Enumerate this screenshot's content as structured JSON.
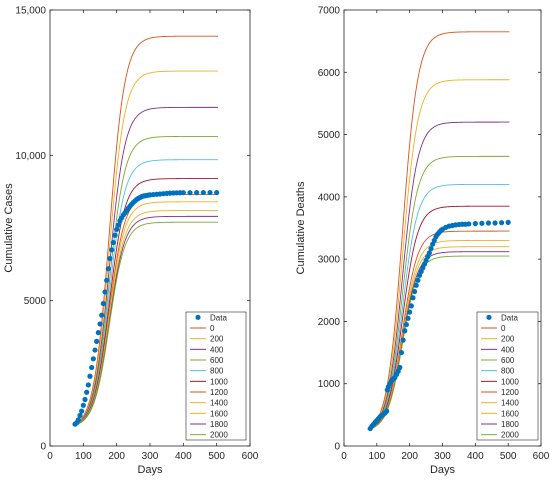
{
  "chart_data": [
    {
      "type": "line",
      "xlabel": "Days",
      "ylabel": "Cumulative Cases",
      "xlim": [
        0,
        600
      ],
      "ylim": [
        0,
        15000
      ],
      "xticks": [
        0,
        100,
        200,
        300,
        400,
        500,
        600
      ],
      "xtick_labels": [
        "0",
        "100",
        "200",
        "300",
        "400",
        "500",
        "600"
      ],
      "yticks": [
        0,
        5000,
        10000,
        15000
      ],
      "ytick_labels": [
        "0",
        "5000",
        "10,000",
        "15,000"
      ],
      "grid": false,
      "legend_position": "bottom-right",
      "legend": [
        "Data",
        "0",
        "200",
        "400",
        "600",
        "800",
        "1000",
        "1200",
        "1400",
        "1600",
        "1800",
        "2000"
      ],
      "data_series": {
        "name": "Data",
        "color": "#0072bd",
        "points": [
          [
            75,
            750
          ],
          [
            80,
            800
          ],
          [
            85,
            900
          ],
          [
            90,
            1050
          ],
          [
            95,
            1200
          ],
          [
            100,
            1400
          ],
          [
            105,
            1600
          ],
          [
            110,
            1850
          ],
          [
            115,
            2100
          ],
          [
            120,
            2400
          ],
          [
            125,
            2700
          ],
          [
            130,
            3000
          ],
          [
            135,
            3300
          ],
          [
            140,
            3600
          ],
          [
            145,
            3900
          ],
          [
            150,
            4200
          ],
          [
            155,
            4500
          ],
          [
            160,
            4900
          ],
          [
            165,
            5300
          ],
          [
            170,
            5700
          ],
          [
            175,
            6100
          ],
          [
            180,
            6450
          ],
          [
            185,
            6750
          ],
          [
            190,
            7000
          ],
          [
            195,
            7250
          ],
          [
            200,
            7450
          ],
          [
            205,
            7600
          ],
          [
            210,
            7750
          ],
          [
            215,
            7850
          ],
          [
            220,
            7950
          ],
          [
            225,
            8020
          ],
          [
            230,
            8100
          ],
          [
            235,
            8180
          ],
          [
            240,
            8250
          ],
          [
            245,
            8320
          ],
          [
            250,
            8380
          ],
          [
            255,
            8430
          ],
          [
            260,
            8480
          ],
          [
            265,
            8520
          ],
          [
            270,
            8550
          ],
          [
            275,
            8580
          ],
          [
            280,
            8600
          ],
          [
            285,
            8610
          ],
          [
            290,
            8620
          ],
          [
            295,
            8630
          ],
          [
            300,
            8640
          ],
          [
            310,
            8650
          ],
          [
            320,
            8660
          ],
          [
            330,
            8670
          ],
          [
            340,
            8680
          ],
          [
            350,
            8690
          ],
          [
            360,
            8700
          ],
          [
            370,
            8705
          ],
          [
            380,
            8710
          ],
          [
            390,
            8712
          ],
          [
            400,
            8715
          ],
          [
            420,
            8715
          ],
          [
            440,
            8718
          ],
          [
            460,
            8720
          ],
          [
            480,
            8720
          ],
          [
            500,
            8720
          ]
        ]
      },
      "model_series": [
        {
          "name": "0",
          "color": "#d95319",
          "final": 14100
        },
        {
          "name": "200",
          "color": "#edb120",
          "final": 12900
        },
        {
          "name": "400",
          "color": "#7e2f8e",
          "final": 11650
        },
        {
          "name": "600",
          "color": "#77ac30",
          "final": 10650
        },
        {
          "name": "800",
          "color": "#4dbeee",
          "final": 9850
        },
        {
          "name": "1000",
          "color": "#a2142f",
          "final": 9200
        },
        {
          "name": "1200",
          "color": "#d95319",
          "final": 8650
        },
        {
          "name": "1400",
          "color": "#edb120",
          "final": 8400
        },
        {
          "name": "1600",
          "color": "#edb120",
          "final": 8100
        },
        {
          "name": "1800",
          "color": "#7e2f8e",
          "final": 7900
        },
        {
          "name": "2000",
          "color": "#77ac30",
          "final": 7700
        }
      ]
    },
    {
      "type": "line",
      "xlabel": "Days",
      "ylabel": "Cumulative Deaths",
      "xlim": [
        0,
        600
      ],
      "ylim": [
        0,
        7000
      ],
      "xticks": [
        0,
        100,
        200,
        300,
        400,
        500,
        600
      ],
      "xtick_labels": [
        "0",
        "100",
        "200",
        "300",
        "400",
        "500",
        "600"
      ],
      "yticks": [
        0,
        1000,
        2000,
        3000,
        4000,
        5000,
        6000,
        7000
      ],
      "ytick_labels": [
        "0",
        "1000",
        "2000",
        "3000",
        "4000",
        "5000",
        "6000",
        "7000"
      ],
      "grid": false,
      "legend_position": "bottom-right",
      "legend": [
        "Data",
        "0",
        "200",
        "400",
        "600",
        "800",
        "1000",
        "1200",
        "1400",
        "1600",
        "1800",
        "2000"
      ],
      "data_series": {
        "name": "Data",
        "color": "#0072bd",
        "points": [
          [
            80,
            280
          ],
          [
            85,
            320
          ],
          [
            90,
            350
          ],
          [
            95,
            380
          ],
          [
            100,
            410
          ],
          [
            105,
            440
          ],
          [
            110,
            470
          ],
          [
            115,
            490
          ],
          [
            120,
            510
          ],
          [
            125,
            530
          ],
          [
            130,
            560
          ],
          [
            132,
            900
          ],
          [
            135,
            950
          ],
          [
            140,
            1000
          ],
          [
            145,
            1050
          ],
          [
            150,
            1080
          ],
          [
            155,
            1100
          ],
          [
            160,
            1150
          ],
          [
            165,
            1200
          ],
          [
            170,
            1260
          ],
          [
            175,
            1500
          ],
          [
            180,
            1700
          ],
          [
            185,
            1850
          ],
          [
            190,
            1950
          ],
          [
            195,
            2050
          ],
          [
            200,
            2150
          ],
          [
            205,
            2250
          ],
          [
            210,
            2380
          ],
          [
            215,
            2480
          ],
          [
            220,
            2580
          ],
          [
            225,
            2660
          ],
          [
            230,
            2740
          ],
          [
            235,
            2800
          ],
          [
            240,
            2860
          ],
          [
            245,
            2920
          ],
          [
            250,
            2980
          ],
          [
            255,
            3040
          ],
          [
            260,
            3100
          ],
          [
            265,
            3170
          ],
          [
            270,
            3240
          ],
          [
            275,
            3300
          ],
          [
            280,
            3360
          ],
          [
            285,
            3400
          ],
          [
            290,
            3430
          ],
          [
            295,
            3460
          ],
          [
            300,
            3480
          ],
          [
            310,
            3510
          ],
          [
            320,
            3530
          ],
          [
            330,
            3540
          ],
          [
            340,
            3550
          ],
          [
            350,
            3555
          ],
          [
            360,
            3560
          ],
          [
            370,
            3560
          ],
          [
            380,
            3565
          ],
          [
            400,
            3570
          ],
          [
            420,
            3575
          ],
          [
            440,
            3580
          ],
          [
            460,
            3580
          ],
          [
            480,
            3585
          ],
          [
            500,
            3590
          ]
        ]
      },
      "model_series": [
        {
          "name": "0",
          "color": "#d95319",
          "final": 6650
        },
        {
          "name": "200",
          "color": "#edb120",
          "final": 5880
        },
        {
          "name": "400",
          "color": "#7e2f8e",
          "final": 5200
        },
        {
          "name": "600",
          "color": "#77ac30",
          "final": 4650
        },
        {
          "name": "800",
          "color": "#4dbeee",
          "final": 4200
        },
        {
          "name": "1000",
          "color": "#a2142f",
          "final": 3850
        },
        {
          "name": "1200",
          "color": "#d95319",
          "final": 3450
        },
        {
          "name": "1400",
          "color": "#edb120",
          "final": 3300
        },
        {
          "name": "1600",
          "color": "#edb120",
          "final": 3200
        },
        {
          "name": "1800",
          "color": "#7e2f8e",
          "final": 3120
        },
        {
          "name": "2000",
          "color": "#77ac30",
          "final": 3050
        }
      ]
    }
  ]
}
